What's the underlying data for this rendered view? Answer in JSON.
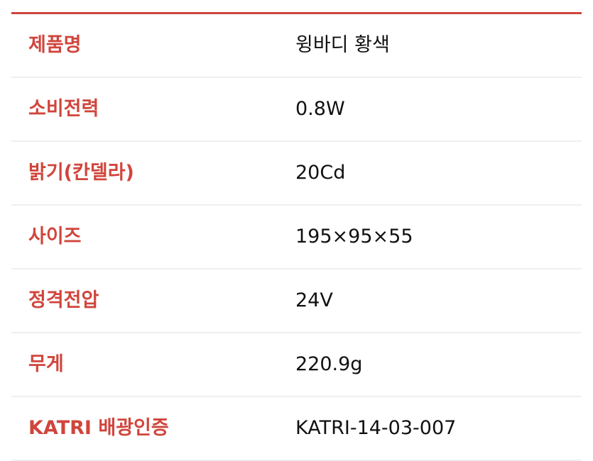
{
  "accent_color": "#d0453c",
  "specs": [
    {
      "label": "제품명",
      "value": "윙바디 황색"
    },
    {
      "label": "소비전력",
      "value": "0.8W"
    },
    {
      "label": "밝기(칸델라)",
      "value": "20Cd"
    },
    {
      "label": "사이즈",
      "value": "195×95×55"
    },
    {
      "label": "정격전압",
      "value": "24V"
    },
    {
      "label": "무게",
      "value": "220.9g"
    },
    {
      "label": "KATRI 배광인증",
      "value": "KATRI-14-03-007"
    }
  ]
}
